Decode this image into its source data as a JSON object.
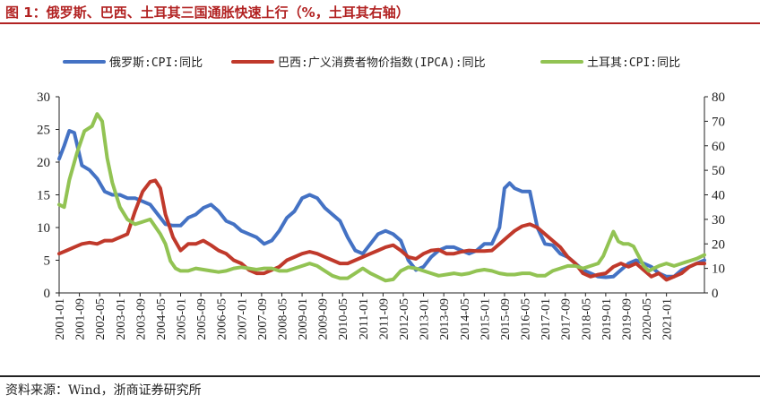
{
  "header": {
    "title": "图 1：俄罗斯、巴西、土耳其三国通胀快速上行（%，土耳其右轴）"
  },
  "footer": {
    "source": "资料来源：Wind，浙商证券研究所"
  },
  "chart_data": {
    "type": "line",
    "title": "图 1：俄罗斯、巴西、土耳其三国通胀快速上行（%，土耳其右轴）",
    "x_labels": [
      "2001-01",
      "2001-09",
      "2002-05",
      "2003-01",
      "2003-09",
      "2004-05",
      "2005-01",
      "2005-09",
      "2006-05",
      "2007-01",
      "2007-09",
      "2008-05",
      "2009-01",
      "2009-09",
      "2010-05",
      "2011-01",
      "2011-09",
      "2012-05",
      "2013-01",
      "2013-09",
      "2014-05",
      "2015-01",
      "2015-09",
      "2016-05",
      "2017-01",
      "2017-09",
      "2018-05",
      "2019-01",
      "2019-09",
      "2020-05",
      "2021-01"
    ],
    "y_left": {
      "min": 0,
      "max": 30,
      "ticks": [
        0,
        5,
        10,
        15,
        20,
        25,
        30
      ]
    },
    "y_right": {
      "min": 0,
      "max": 80,
      "ticks": [
        0,
        10,
        20,
        30,
        40,
        50,
        60,
        70,
        80
      ]
    },
    "series": [
      {
        "name": "俄罗斯:CPI:同比",
        "axis": "left",
        "color": "#4472c4",
        "points": [
          [
            0,
            20.5
          ],
          [
            2,
            22.5
          ],
          [
            4,
            24.8
          ],
          [
            6,
            24.5
          ],
          [
            9,
            19.5
          ],
          [
            12,
            18.8
          ],
          [
            15,
            17.5
          ],
          [
            18,
            15.5
          ],
          [
            21,
            15.0
          ],
          [
            24,
            15.0
          ],
          [
            27,
            14.5
          ],
          [
            30,
            14.5
          ],
          [
            33,
            14.0
          ],
          [
            36,
            13.5
          ],
          [
            39,
            12.0
          ],
          [
            42,
            10.5
          ],
          [
            45,
            10.3
          ],
          [
            48,
            10.3
          ],
          [
            51,
            11.5
          ],
          [
            54,
            12.0
          ],
          [
            57,
            13.0
          ],
          [
            60,
            13.5
          ],
          [
            63,
            12.5
          ],
          [
            66,
            11.0
          ],
          [
            69,
            10.5
          ],
          [
            72,
            9.5
          ],
          [
            75,
            9.0
          ],
          [
            78,
            8.5
          ],
          [
            81,
            7.5
          ],
          [
            84,
            8.0
          ],
          [
            87,
            9.5
          ],
          [
            90,
            11.5
          ],
          [
            93,
            12.5
          ],
          [
            96,
            14.5
          ],
          [
            99,
            15.0
          ],
          [
            102,
            14.5
          ],
          [
            105,
            13.0
          ],
          [
            108,
            12.0
          ],
          [
            111,
            11.0
          ],
          [
            114,
            8.5
          ],
          [
            117,
            6.5
          ],
          [
            120,
            6.0
          ],
          [
            123,
            7.5
          ],
          [
            126,
            9.0
          ],
          [
            129,
            9.5
          ],
          [
            132,
            9.0
          ],
          [
            135,
            8.0
          ],
          [
            138,
            5.0
          ],
          [
            141,
            3.5
          ],
          [
            144,
            4.0
          ],
          [
            147,
            5.5
          ],
          [
            150,
            6.5
          ],
          [
            153,
            7.0
          ],
          [
            156,
            7.0
          ],
          [
            159,
            6.5
          ],
          [
            162,
            6.0
          ],
          [
            165,
            6.5
          ],
          [
            168,
            7.5
          ],
          [
            171,
            7.5
          ],
          [
            174,
            10.0
          ],
          [
            176,
            16.0
          ],
          [
            178,
            16.8
          ],
          [
            180,
            16.0
          ],
          [
            183,
            15.5
          ],
          [
            186,
            15.5
          ],
          [
            189,
            10.0
          ],
          [
            192,
            7.5
          ],
          [
            195,
            7.3
          ],
          [
            198,
            6.0
          ],
          [
            201,
            5.5
          ],
          [
            204,
            4.5
          ],
          [
            207,
            3.5
          ],
          [
            210,
            3.0
          ],
          [
            213,
            2.5
          ],
          [
            216,
            2.4
          ],
          [
            219,
            2.5
          ],
          [
            222,
            3.5
          ],
          [
            225,
            4.5
          ],
          [
            228,
            5.0
          ],
          [
            231,
            4.5
          ],
          [
            234,
            4.0
          ],
          [
            237,
            3.0
          ],
          [
            240,
            2.5
          ],
          [
            243,
            2.5
          ],
          [
            246,
            3.5
          ],
          [
            249,
            4.0
          ],
          [
            252,
            4.5
          ],
          [
            255,
            5.0
          ]
        ]
      },
      {
        "name": "巴西:广义消费者物价指数(IPCA):同比",
        "axis": "left",
        "color": "#c0392b",
        "points": [
          [
            0,
            6.0
          ],
          [
            3,
            6.5
          ],
          [
            6,
            7.0
          ],
          [
            9,
            7.5
          ],
          [
            12,
            7.7
          ],
          [
            15,
            7.5
          ],
          [
            18,
            8.0
          ],
          [
            21,
            8.0
          ],
          [
            24,
            8.5
          ],
          [
            27,
            9.0
          ],
          [
            30,
            12.5
          ],
          [
            33,
            15.5
          ],
          [
            36,
            17.0
          ],
          [
            38,
            17.2
          ],
          [
            40,
            16.0
          ],
          [
            42,
            12.0
          ],
          [
            45,
            8.5
          ],
          [
            48,
            6.5
          ],
          [
            51,
            7.5
          ],
          [
            54,
            7.5
          ],
          [
            57,
            8.0
          ],
          [
            60,
            7.3
          ],
          [
            63,
            6.5
          ],
          [
            66,
            6.0
          ],
          [
            69,
            5.0
          ],
          [
            72,
            4.5
          ],
          [
            75,
            3.5
          ],
          [
            78,
            3.0
          ],
          [
            81,
            3.0
          ],
          [
            84,
            3.5
          ],
          [
            87,
            4.0
          ],
          [
            90,
            5.0
          ],
          [
            93,
            5.5
          ],
          [
            96,
            6.0
          ],
          [
            99,
            6.3
          ],
          [
            102,
            6.0
          ],
          [
            105,
            5.5
          ],
          [
            108,
            5.0
          ],
          [
            111,
            4.5
          ],
          [
            114,
            4.5
          ],
          [
            117,
            5.0
          ],
          [
            120,
            5.5
          ],
          [
            123,
            6.0
          ],
          [
            126,
            6.5
          ],
          [
            129,
            7.0
          ],
          [
            132,
            7.3
          ],
          [
            135,
            6.5
          ],
          [
            138,
            5.5
          ],
          [
            141,
            5.2
          ],
          [
            144,
            6.0
          ],
          [
            147,
            6.5
          ],
          [
            150,
            6.6
          ],
          [
            153,
            6.0
          ],
          [
            156,
            6.0
          ],
          [
            159,
            6.3
          ],
          [
            162,
            6.5
          ],
          [
            165,
            6.4
          ],
          [
            168,
            6.4
          ],
          [
            171,
            6.5
          ],
          [
            174,
            7.5
          ],
          [
            177,
            8.5
          ],
          [
            180,
            9.5
          ],
          [
            183,
            10.2
          ],
          [
            186,
            10.5
          ],
          [
            189,
            10.0
          ],
          [
            192,
            9.0
          ],
          [
            195,
            8.0
          ],
          [
            198,
            7.0
          ],
          [
            201,
            5.5
          ],
          [
            204,
            4.5
          ],
          [
            207,
            3.0
          ],
          [
            210,
            2.5
          ],
          [
            213,
            2.8
          ],
          [
            216,
            3.0
          ],
          [
            219,
            4.0
          ],
          [
            222,
            4.5
          ],
          [
            225,
            4.0
          ],
          [
            228,
            4.5
          ],
          [
            231,
            3.5
          ],
          [
            234,
            2.5
          ],
          [
            237,
            3.0
          ],
          [
            240,
            2.0
          ],
          [
            243,
            2.5
          ],
          [
            246,
            3.0
          ],
          [
            249,
            4.0
          ],
          [
            252,
            4.5
          ],
          [
            255,
            4.5
          ]
        ]
      },
      {
        "name": "土耳其:CPI:同比",
        "axis": "right",
        "color": "#92c353",
        "points": [
          [
            0,
            36
          ],
          [
            2,
            35
          ],
          [
            4,
            46
          ],
          [
            7,
            57
          ],
          [
            10,
            66
          ],
          [
            13,
            68
          ],
          [
            15,
            73
          ],
          [
            17,
            70
          ],
          [
            19,
            55
          ],
          [
            21,
            45
          ],
          [
            24,
            35
          ],
          [
            27,
            30
          ],
          [
            30,
            28
          ],
          [
            33,
            29
          ],
          [
            36,
            30
          ],
          [
            38,
            27
          ],
          [
            40,
            24
          ],
          [
            42,
            20
          ],
          [
            44,
            13
          ],
          [
            46,
            10
          ],
          [
            48,
            9
          ],
          [
            51,
            9
          ],
          [
            54,
            10
          ],
          [
            57,
            9.5
          ],
          [
            60,
            9
          ],
          [
            63,
            8.5
          ],
          [
            66,
            9
          ],
          [
            69,
            10
          ],
          [
            72,
            10.5
          ],
          [
            75,
            10
          ],
          [
            78,
            9.5
          ],
          [
            81,
            10
          ],
          [
            84,
            10
          ],
          [
            87,
            9
          ],
          [
            90,
            9
          ],
          [
            93,
            10
          ],
          [
            96,
            11
          ],
          [
            99,
            12
          ],
          [
            102,
            11
          ],
          [
            105,
            9
          ],
          [
            108,
            7
          ],
          [
            111,
            6
          ],
          [
            114,
            6
          ],
          [
            117,
            8
          ],
          [
            120,
            10
          ],
          [
            123,
            8
          ],
          [
            126,
            6.5
          ],
          [
            129,
            5
          ],
          [
            132,
            5.5
          ],
          [
            135,
            9
          ],
          [
            138,
            10.5
          ],
          [
            141,
            10
          ],
          [
            144,
            9
          ],
          [
            147,
            8
          ],
          [
            150,
            7
          ],
          [
            153,
            7.5
          ],
          [
            156,
            8
          ],
          [
            159,
            7.5
          ],
          [
            162,
            8
          ],
          [
            165,
            9
          ],
          [
            168,
            9.5
          ],
          [
            171,
            9
          ],
          [
            174,
            8
          ],
          [
            177,
            7.5
          ],
          [
            180,
            7.5
          ],
          [
            183,
            8
          ],
          [
            186,
            8
          ],
          [
            189,
            7
          ],
          [
            192,
            7
          ],
          [
            195,
            9
          ],
          [
            198,
            10
          ],
          [
            201,
            11
          ],
          [
            204,
            11
          ],
          [
            207,
            10
          ],
          [
            210,
            11
          ],
          [
            213,
            12
          ],
          [
            215,
            15
          ],
          [
            217,
            20
          ],
          [
            219,
            25
          ],
          [
            221,
            21
          ],
          [
            223,
            20
          ],
          [
            225,
            20
          ],
          [
            227,
            19
          ],
          [
            229,
            15
          ],
          [
            231,
            11
          ],
          [
            233,
            9
          ],
          [
            235,
            10
          ],
          [
            237,
            11
          ],
          [
            240,
            12
          ],
          [
            243,
            11
          ],
          [
            246,
            12
          ],
          [
            249,
            13
          ],
          [
            252,
            14
          ],
          [
            255,
            15.5
          ]
        ]
      }
    ]
  }
}
